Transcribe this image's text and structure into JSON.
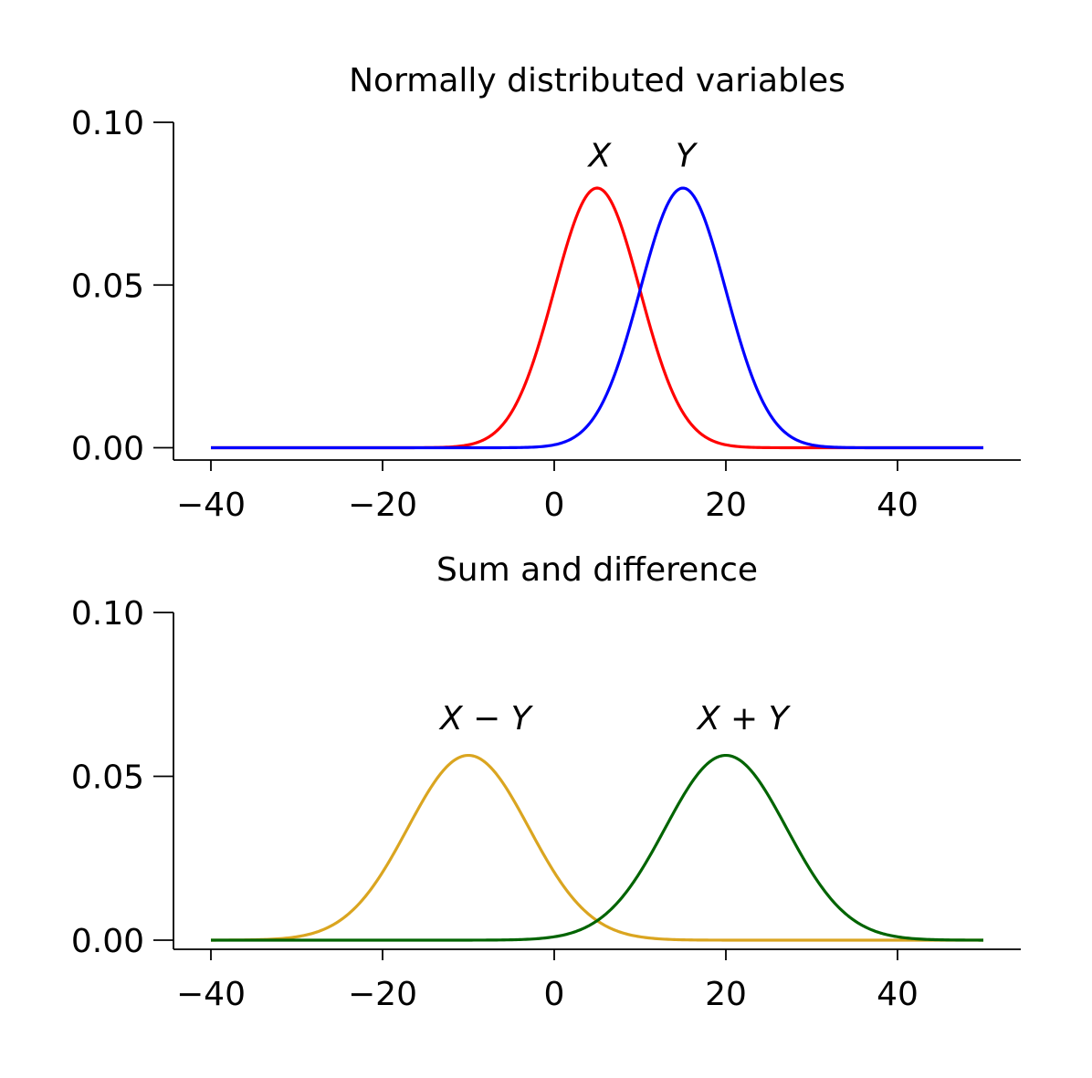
{
  "chart_data": [
    {
      "type": "line",
      "title": "Normally distributed variables",
      "xlabel": "",
      "ylabel": "",
      "xlim": [
        -42.2,
        53.2
      ],
      "ylim": [
        -0.004,
        0.1
      ],
      "x_ticks": [
        -40,
        -20,
        0,
        20,
        40
      ],
      "x_tick_labels": [
        "−40",
        "−20",
        "0",
        "20",
        "40"
      ],
      "y_ticks": [
        0.0,
        0.05,
        0.1
      ],
      "y_tick_labels": [
        "0.00",
        "0.05",
        "0.10"
      ],
      "x_range": [
        -40,
        50
      ],
      "grid": false,
      "series": [
        {
          "name": "X",
          "distribution": "normal",
          "mean": 5,
          "sd": 5,
          "peak": 0.0798,
          "color": "#ff0000"
        },
        {
          "name": "Y",
          "distribution": "normal",
          "mean": 15,
          "sd": 5,
          "peak": 0.0798,
          "color": "#0000ff"
        }
      ],
      "annotations": [
        {
          "text": "X",
          "x": 5.3,
          "y": 0.09
        },
        {
          "text": "Y",
          "x": 15.3,
          "y": 0.09
        }
      ]
    },
    {
      "type": "line",
      "title": "Sum and difference",
      "xlabel": "",
      "ylabel": "",
      "xlim": [
        -42.2,
        53.2
      ],
      "ylim": [
        -0.003,
        0.1
      ],
      "x_ticks": [
        -40,
        -20,
        0,
        20,
        40
      ],
      "x_tick_labels": [
        "−40",
        "−20",
        "0",
        "20",
        "40"
      ],
      "y_ticks": [
        0.0,
        0.05,
        0.1
      ],
      "y_tick_labels": [
        "0.00",
        "0.05",
        "0.10"
      ],
      "x_range": [
        -40,
        50
      ],
      "grid": false,
      "series": [
        {
          "name": "X − Y",
          "distribution": "normal",
          "mean": -10,
          "sd": 7.07,
          "peak": 0.0564,
          "color": "#daa520"
        },
        {
          "name": "X + Y",
          "distribution": "normal",
          "mean": 20,
          "sd": 7.07,
          "peak": 0.0564,
          "color": "#006400"
        }
      ],
      "annotations": [
        {
          "text": "X − Y",
          "x": -8,
          "y": 0.068
        },
        {
          "text": "X + Y",
          "x": 22,
          "y": 0.068
        }
      ]
    }
  ]
}
